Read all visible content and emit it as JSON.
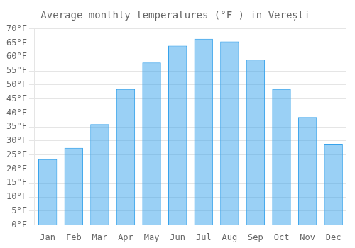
{
  "chart_data": {
    "type": "bar",
    "title": "Average monthly temperatures (°F ) in Verești",
    "categories": [
      "Jan",
      "Feb",
      "Mar",
      "Apr",
      "May",
      "Jun",
      "Jul",
      "Aug",
      "Sep",
      "Oct",
      "Nov",
      "Dec"
    ],
    "values": [
      23.5,
      27.5,
      36,
      48.5,
      58,
      64,
      66.5,
      65.5,
      59,
      48.5,
      38.5,
      29
    ],
    "ylim": [
      0,
      70
    ],
    "yticks": [
      {
        "value": 0,
        "label": "0°F"
      },
      {
        "value": 5,
        "label": "5°F"
      },
      {
        "value": 10,
        "label": "10°F"
      },
      {
        "value": 15,
        "label": "15°F"
      },
      {
        "value": 20,
        "label": "20°F"
      },
      {
        "value": 25,
        "label": "25°F"
      },
      {
        "value": 30,
        "label": "30°F"
      },
      {
        "value": 35,
        "label": "35°F"
      },
      {
        "value": 40,
        "label": "40°F"
      },
      {
        "value": 45,
        "label": "45°F"
      },
      {
        "value": 50,
        "label": "50°F"
      },
      {
        "value": 55,
        "label": "55°F"
      },
      {
        "value": 60,
        "label": "60°F"
      },
      {
        "value": 65,
        "label": "65°F"
      },
      {
        "value": 70,
        "label": "70°F"
      }
    ],
    "grid": true
  }
}
